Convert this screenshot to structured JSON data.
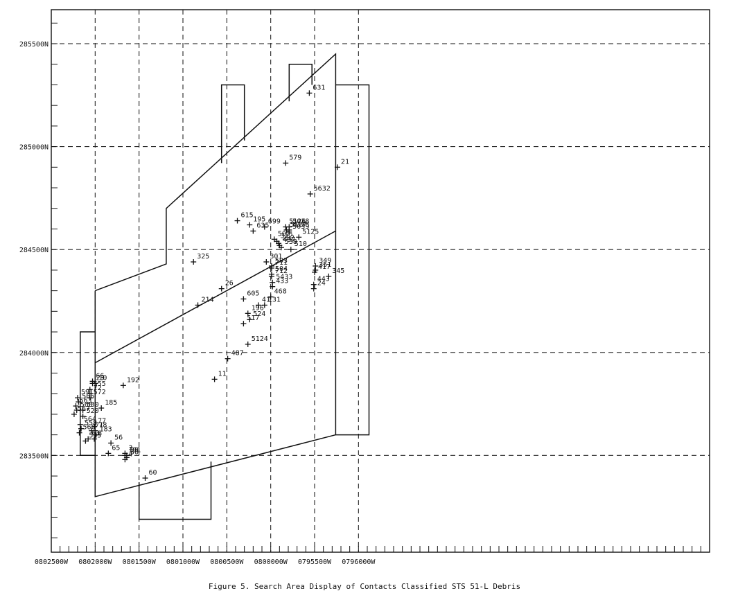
{
  "caption": "Figure 5.  Search Area Display of Contacts Classified STS 51-L Debris",
  "chart_data": {
    "type": "scatter",
    "title": "Figure 5.  Search Area Display of Contacts Classified STS 51-L Debris",
    "x_unit": "easting (labels printed as 0802500W ... 0795000W)",
    "xlim": [
      802500,
      795000
    ],
    "ylim": [
      283030,
      285665
    ],
    "grid": true,
    "x_ticks": [
      {
        "value": 802500,
        "label": "0802500W"
      },
      {
        "value": 802000,
        "label": "0802000W"
      },
      {
        "value": 801500,
        "label": "0801500W"
      },
      {
        "value": 801000,
        "label": "0801000W"
      },
      {
        "value": 800500,
        "label": "0800500W"
      },
      {
        "value": 800000,
        "label": "0800000W"
      },
      {
        "value": 799500,
        "label": "0799500W"
      },
      {
        "value": 799000,
        "label": "0799000W"
      }
    ],
    "x_tick_label_override": {
      "799500": "0795500W",
      "799000": "0796000W"
    },
    "y_ticks": [
      {
        "value": 285500,
        "label": "285500N"
      },
      {
        "value": 285000,
        "label": "285000N"
      },
      {
        "value": 284500,
        "label": "284500N"
      },
      {
        "value": 284000,
        "label": "284000N"
      },
      {
        "value": 283500,
        "label": "283500N"
      }
    ],
    "search_area_outline": [
      [
        [
          802000,
          284290
        ],
        [
          801930,
          284290
        ]
      ],
      [
        [
          801190,
          284700
        ],
        [
          799260,
          285450
        ],
        [
          799260,
          285300
        ],
        [
          798880,
          285300
        ],
        [
          798880,
          283600
        ],
        [
          799260,
          283600
        ],
        [
          799260,
          283600
        ],
        [
          802000,
          283300
        ],
        [
          802000,
          284300
        ]
      ]
    ],
    "contacts": [
      {
        "id": "631",
        "x": 799560,
        "y": 285260
      },
      {
        "id": "579",
        "x": 799830,
        "y": 284920
      },
      {
        "id": "21",
        "x": 799240,
        "y": 284900
      },
      {
        "id": "5632",
        "x": 799550,
        "y": 284770
      },
      {
        "id": "615",
        "x": 800380,
        "y": 284640
      },
      {
        "id": "195",
        "x": 800240,
        "y": 284620
      },
      {
        "id": "699",
        "x": 800070,
        "y": 284610
      },
      {
        "id": "635",
        "x": 800200,
        "y": 284590
      },
      {
        "id": "5126",
        "x": 799830,
        "y": 284610
      },
      {
        "id": "5038",
        "x": 799790,
        "y": 284610
      },
      {
        "id": "5127",
        "x": 799820,
        "y": 284595
      },
      {
        "id": "5128",
        "x": 799790,
        "y": 284595
      },
      {
        "id": "5039",
        "x": 799790,
        "y": 284585
      },
      {
        "id": "5125",
        "x": 799680,
        "y": 284560
      },
      {
        "id": "502",
        "x": 799960,
        "y": 284550
      },
      {
        "id": "312",
        "x": 799930,
        "y": 284540
      },
      {
        "id": "292",
        "x": 799910,
        "y": 284530
      },
      {
        "id": "497",
        "x": 799900,
        "y": 284520
      },
      {
        "id": "538",
        "x": 799880,
        "y": 284510
      },
      {
        "id": "510",
        "x": 799770,
        "y": 284500
      },
      {
        "id": "325",
        "x": 800880,
        "y": 284440
      },
      {
        "id": "349",
        "x": 799490,
        "y": 284420
      },
      {
        "id": "351",
        "x": 799490,
        "y": 284400
      },
      {
        "id": "301",
        "x": 800050,
        "y": 284440
      },
      {
        "id": "417",
        "x": 799500,
        "y": 284390
      },
      {
        "id": "503",
        "x": 799990,
        "y": 284420
      },
      {
        "id": "711",
        "x": 799990,
        "y": 284410
      },
      {
        "id": "504",
        "x": 799990,
        "y": 284380
      },
      {
        "id": "712",
        "x": 799990,
        "y": 284370
      },
      {
        "id": "345",
        "x": 799340,
        "y": 284370
      },
      {
        "id": "5433",
        "x": 799980,
        "y": 284340
      },
      {
        "id": "433",
        "x": 799980,
        "y": 284320
      },
      {
        "id": "26",
        "x": 800560,
        "y": 284310
      },
      {
        "id": "443",
        "x": 799510,
        "y": 284330
      },
      {
        "id": "24",
        "x": 799510,
        "y": 284310
      },
      {
        "id": "605",
        "x": 800310,
        "y": 284260
      },
      {
        "id": "468",
        "x": 800000,
        "y": 284270
      },
      {
        "id": "41",
        "x": 800140,
        "y": 284230
      },
      {
        "id": "214",
        "x": 800830,
        "y": 284230
      },
      {
        "id": "131",
        "x": 800070,
        "y": 284230
      },
      {
        "id": "196",
        "x": 800260,
        "y": 284190
      },
      {
        "id": "517",
        "x": 800310,
        "y": 284140
      },
      {
        "id": "524",
        "x": 800240,
        "y": 284160
      },
      {
        "id": "5124",
        "x": 800260,
        "y": 284040
      },
      {
        "id": "487",
        "x": 800490,
        "y": 283970
      },
      {
        "id": "11",
        "x": 800640,
        "y": 283870
      },
      {
        "id": "192",
        "x": 801680,
        "y": 283840
      },
      {
        "id": "66",
        "x": 802030,
        "y": 283860
      },
      {
        "id": "23",
        "x": 802030,
        "y": 283850
      },
      {
        "id": "10",
        "x": 802000,
        "y": 283850
      },
      {
        "id": "555",
        "x": 802060,
        "y": 283820
      },
      {
        "id": "72",
        "x": 802060,
        "y": 283800
      },
      {
        "id": "572",
        "x": 802060,
        "y": 283780
      },
      {
        "id": "591",
        "x": 802200,
        "y": 283780
      },
      {
        "id": "566",
        "x": 802190,
        "y": 283760
      },
      {
        "id": "563",
        "x": 802220,
        "y": 283740
      },
      {
        "id": "568",
        "x": 802210,
        "y": 283720
      },
      {
        "id": "185",
        "x": 801930,
        "y": 283730
      },
      {
        "id": "530",
        "x": 802140,
        "y": 283720
      },
      {
        "id": "567",
        "x": 802240,
        "y": 283700
      },
      {
        "id": "520",
        "x": 802140,
        "y": 283690
      },
      {
        "id": "77",
        "x": 802010,
        "y": 283640
      },
      {
        "id": "564",
        "x": 802170,
        "y": 283650
      },
      {
        "id": "78",
        "x": 802000,
        "y": 283620
      },
      {
        "id": "71",
        "x": 802040,
        "y": 283620
      },
      {
        "id": "183",
        "x": 801990,
        "y": 283600
      },
      {
        "id": "558",
        "x": 802160,
        "y": 283630
      },
      {
        "id": "63",
        "x": 802080,
        "y": 283580
      },
      {
        "id": "8",
        "x": 802010,
        "y": 283580
      },
      {
        "id": "560",
        "x": 802180,
        "y": 283610
      },
      {
        "id": "56",
        "x": 801820,
        "y": 283560
      },
      {
        "id": "595",
        "x": 802110,
        "y": 283570
      },
      {
        "id": "65",
        "x": 801850,
        "y": 283510
      },
      {
        "id": "3",
        "x": 801660,
        "y": 283510
      },
      {
        "id": "29",
        "x": 801640,
        "y": 283500
      },
      {
        "id": "191",
        "x": 801660,
        "y": 283500
      },
      {
        "id": "30",
        "x": 801640,
        "y": 283490
      },
      {
        "id": "4",
        "x": 801660,
        "y": 283480
      },
      {
        "id": "60",
        "x": 801430,
        "y": 283390
      }
    ]
  }
}
